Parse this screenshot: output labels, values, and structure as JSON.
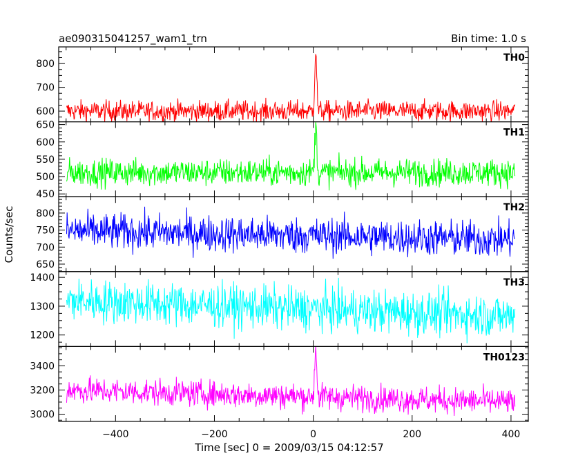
{
  "header": {
    "left_title": "ae090315041257_wam1_trn",
    "right_title": "Bin time: 1.0 s"
  },
  "chart_data": {
    "type": "line",
    "title": "ae090315041257_wam1_trn",
    "subtitle": "Bin time: 1.0 s",
    "xlabel": "Time [sec] 0 = 2009/03/15 04:12:57",
    "ylabel": "Counts/sec",
    "xlim": [
      -515,
      435
    ],
    "xticks": [
      -400,
      -200,
      0,
      200,
      400
    ],
    "grid": false,
    "legend": "none",
    "panels": [
      {
        "name": "TH0",
        "color": "#ff0000",
        "ylim": [
          555,
          870
        ],
        "yticks": [
          600,
          700,
          800
        ],
        "series": {
          "x_start": -499,
          "x_end": 408,
          "step": 1,
          "baseline": 600,
          "noise": 22,
          "peak_time": 5,
          "peak_value": 860
        }
      },
      {
        "name": "TH1",
        "color": "#00ff00",
        "ylim": [
          442,
          658
        ],
        "yticks": [
          450,
          500,
          550,
          600,
          650
        ],
        "series": {
          "x_start": -499,
          "x_end": 408,
          "step": 1,
          "baseline": 512,
          "noise": 20,
          "peak_time": 5,
          "peak_value": 650
        }
      },
      {
        "name": "TH2",
        "color": "#0000ff",
        "ylim": [
          628,
          848
        ],
        "yticks": [
          650,
          700,
          750,
          800
        ],
        "series": {
          "x_start": -499,
          "x_end": 408,
          "step": 1,
          "baseline": 732,
          "noise": 27,
          "trend_start": 748,
          "trend_end": 722
        }
      },
      {
        "name": "TH3",
        "color": "#00ffff",
        "ylim": [
          1160,
          1420
        ],
        "yticks": [
          1200,
          1300,
          1400
        ],
        "series": {
          "x_start": -499,
          "x_end": 408,
          "step": 1,
          "baseline": 1280,
          "noise": 38,
          "trend_start": 1320,
          "trend_end": 1265
        }
      },
      {
        "name": "TH0123",
        "color": "#ff00ff",
        "ylim": [
          2940,
          3560
        ],
        "yticks": [
          3000,
          3200,
          3400
        ],
        "series": {
          "x_start": -499,
          "x_end": 408,
          "step": 1,
          "baseline": 3120,
          "noise": 55,
          "trend_start": 3200,
          "trend_end": 3100,
          "peak_time": 5,
          "peak_value": 3550
        }
      }
    ]
  }
}
